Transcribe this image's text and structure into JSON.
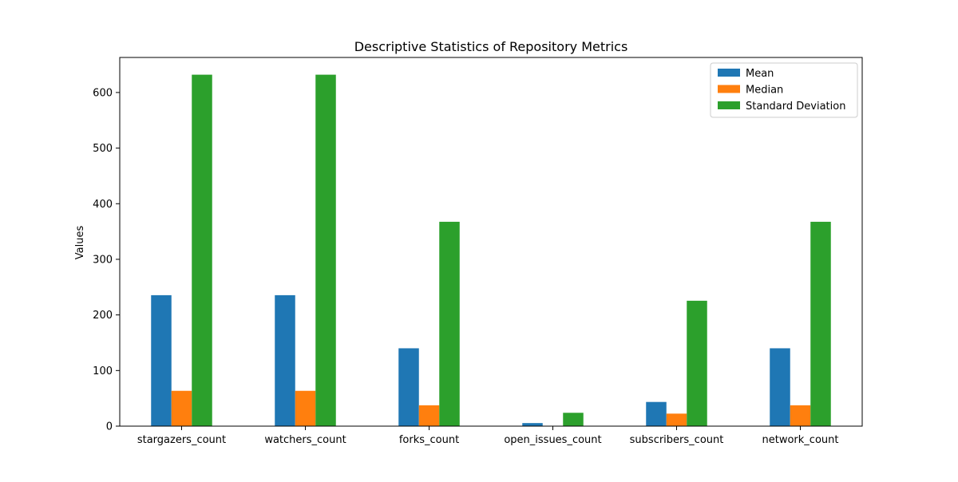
{
  "chart_data": {
    "type": "bar",
    "title": "Descriptive Statistics of Repository Metrics",
    "xlabel": "",
    "ylabel": "Values",
    "categories": [
      "stargazers_count",
      "watchers_count",
      "forks_count",
      "open_issues_count",
      "subscribers_count",
      "network_count"
    ],
    "series": [
      {
        "name": "Mean",
        "color": "#1f77b4",
        "values": [
          235.5,
          235.5,
          140.0,
          5.5,
          43.5,
          140.0
        ]
      },
      {
        "name": "Median",
        "color": "#ff7f0e",
        "values": [
          63.5,
          63.5,
          37.5,
          0,
          22.5,
          37.5
        ]
      },
      {
        "name": "Standard Deviation",
        "color": "#2ca02c",
        "values": [
          632.0,
          632.0,
          367.5,
          24.0,
          225.5,
          367.5
        ]
      }
    ],
    "ylim": [
      0,
      663
    ],
    "yticks": [
      0,
      100,
      200,
      300,
      400,
      500,
      600
    ],
    "grid": false,
    "legend_position": "top-right"
  }
}
